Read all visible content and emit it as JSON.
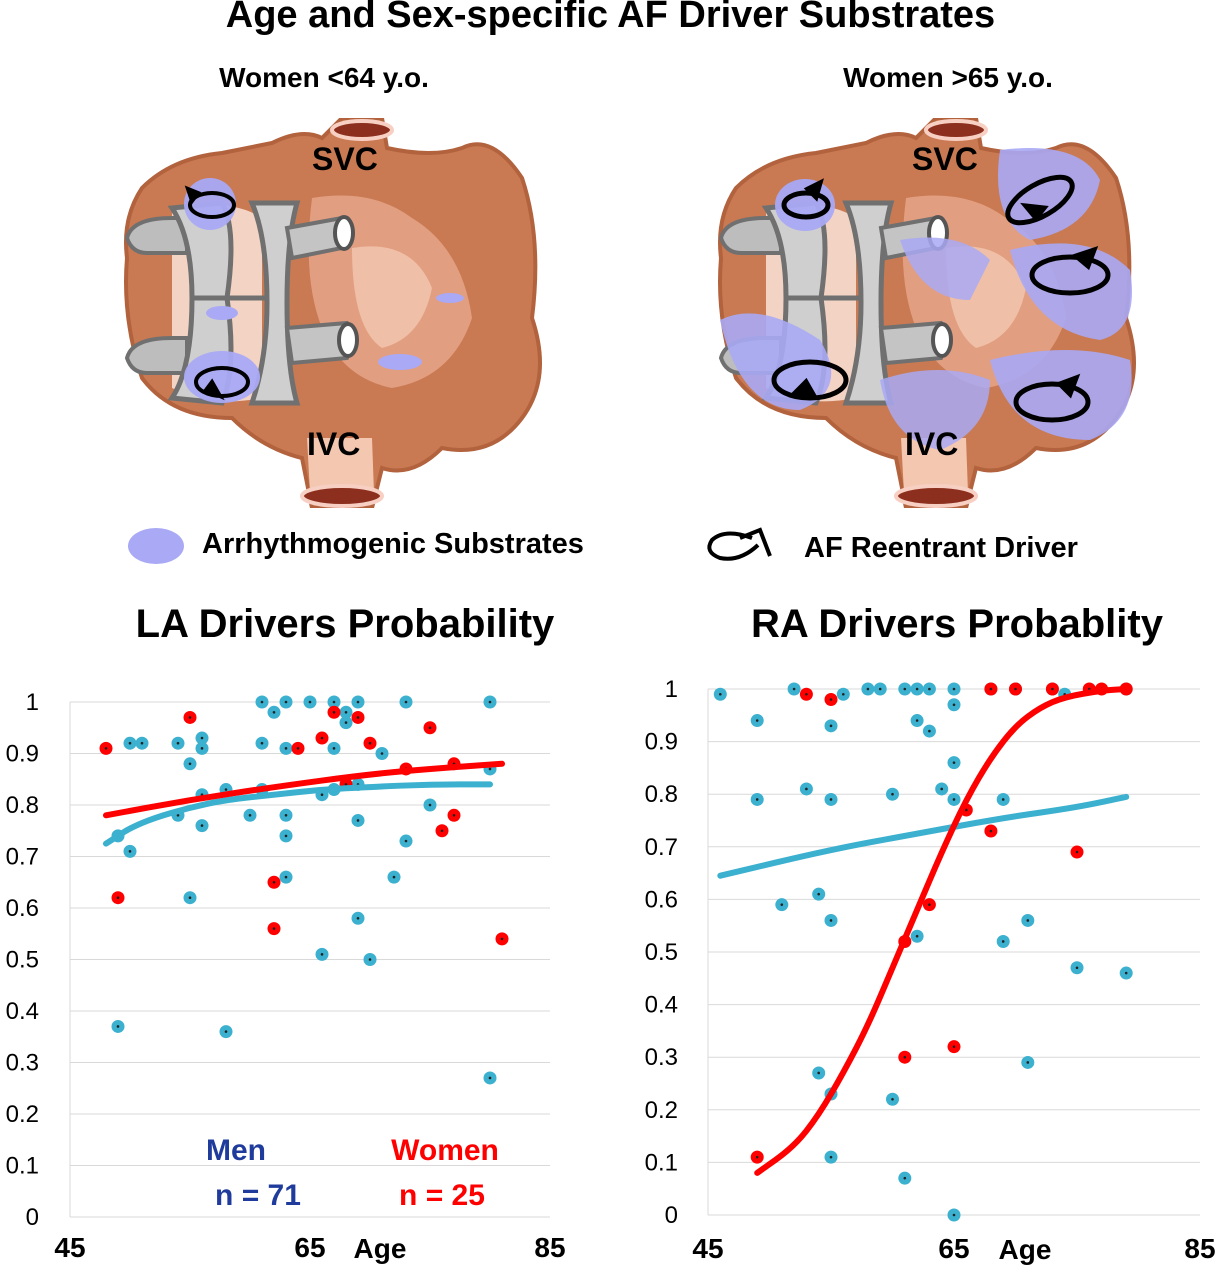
{
  "title": "Age and Sex-specific AF Driver Substrates",
  "panels": [
    {
      "label": "Women <64 y.o.",
      "svc": "SVC",
      "ivc": "IVC"
    },
    {
      "label": "Women >65 y.o.",
      "svc": "SVC",
      "ivc": "IVC"
    }
  ],
  "legend": {
    "substrate": "Arrhythmogenic Substrates",
    "driver": "AF Reentrant Driver"
  },
  "colors": {
    "men": "#3BB0CF",
    "women": "#FF0000",
    "men_label": "#1F3C9C",
    "substrate": "#A9A9F5"
  },
  "chart_data": [
    {
      "type": "scatter",
      "title": "LA Drivers Probability",
      "xlim": [
        45,
        85
      ],
      "ylim": [
        0,
        1
      ],
      "x_ticks": [
        "45",
        "65",
        "85"
      ],
      "xlabel": "Age",
      "y_ticks": [
        "0",
        "0.1",
        "0.2",
        "0.3",
        "0.4",
        "0.5",
        "0.6",
        "0.7",
        "0.8",
        "0.9",
        "1"
      ],
      "annotations": {
        "men": "Men",
        "men_n": "n = 71",
        "women": "Women",
        "women_n": "n = 25"
      },
      "series": [
        {
          "name": "Men",
          "color": "#3BB0CF",
          "points": [
            [
              50,
              0.92
            ],
            [
              51,
              0.92
            ],
            [
              54,
              0.92
            ],
            [
              56,
              0.93
            ],
            [
              56,
              0.91
            ],
            [
              61,
              1.0
            ],
            [
              62,
              0.98
            ],
            [
              63,
              1.0
            ],
            [
              65,
              1.0
            ],
            [
              67,
              1.0
            ],
            [
              69,
              1.0
            ],
            [
              73,
              1.0
            ],
            [
              80,
              1.0
            ],
            [
              49,
              0.74
            ],
            [
              50,
              0.71
            ],
            [
              55,
              0.88
            ],
            [
              56,
              0.82
            ],
            [
              56,
              0.76
            ],
            [
              58,
              0.83
            ],
            [
              60,
              0.78
            ],
            [
              61,
              0.83
            ],
            [
              61,
              0.92
            ],
            [
              63,
              0.91
            ],
            [
              63,
              0.78
            ],
            [
              63,
              0.74
            ],
            [
              63,
              0.66
            ],
            [
              66,
              0.82
            ],
            [
              67,
              0.83
            ],
            [
              67,
              0.91
            ],
            [
              68,
              0.96
            ],
            [
              68,
              0.98
            ],
            [
              69,
              0.84
            ],
            [
              69,
              0.77
            ],
            [
              71,
              0.9
            ],
            [
              72,
              0.66
            ],
            [
              73,
              0.73
            ],
            [
              75,
              0.8
            ],
            [
              80,
              0.87
            ],
            [
              55,
              0.62
            ],
            [
              49,
              0.37
            ],
            [
              58,
              0.36
            ],
            [
              66,
              0.51
            ],
            [
              69,
              0.58
            ],
            [
              70,
              0.5
            ],
            [
              80,
              0.27
            ],
            [
              54,
              0.78
            ]
          ]
        },
        {
          "name": "Women",
          "color": "#FF0000",
          "points": [
            [
              48,
              0.91
            ],
            [
              49,
              0.62
            ],
            [
              55,
              0.97
            ],
            [
              62,
              0.65
            ],
            [
              62,
              0.56
            ],
            [
              64,
              0.91
            ],
            [
              66,
              0.93
            ],
            [
              67,
              0.98
            ],
            [
              68,
              0.84
            ],
            [
              69,
              0.97
            ],
            [
              70,
              0.92
            ],
            [
              73,
              0.87
            ],
            [
              75,
              0.95
            ],
            [
              77,
              0.88
            ],
            [
              76,
              0.75
            ],
            [
              77,
              0.78
            ],
            [
              81,
              0.54
            ]
          ]
        }
      ],
      "trendlines": [
        {
          "name": "Men trend",
          "color": "#3BB0CF",
          "points": [
            [
              48,
              0.725
            ],
            [
              49,
              0.74
            ],
            [
              50,
              0.755
            ],
            [
              52,
              0.775
            ],
            [
              55,
              0.795
            ],
            [
              58,
              0.81
            ],
            [
              62,
              0.82
            ],
            [
              66,
              0.83
            ],
            [
              70,
              0.835
            ],
            [
              75,
              0.84
            ],
            [
              80,
              0.84
            ]
          ]
        },
        {
          "name": "Women trend",
          "color": "#FF0000",
          "points": [
            [
              48,
              0.78
            ],
            [
              55,
              0.81
            ],
            [
              62,
              0.835
            ],
            [
              70,
              0.86
            ],
            [
              76,
              0.872
            ],
            [
              81,
              0.88
            ]
          ]
        }
      ]
    },
    {
      "type": "scatter",
      "title": "RA  Drivers Probablity",
      "xlim": [
        45,
        85
      ],
      "ylim": [
        0,
        1
      ],
      "x_ticks": [
        "45",
        "65",
        "85"
      ],
      "xlabel": "Age",
      "y_ticks": [
        "0",
        "0.1",
        "0.2",
        "0.3",
        "0.4",
        "0.5",
        "0.6",
        "0.7",
        "0.8",
        "0.9",
        "1"
      ],
      "series": [
        {
          "name": "Men",
          "color": "#3BB0CF",
          "points": [
            [
              46,
              0.99
            ],
            [
              52,
              1.0
            ],
            [
              56,
              0.99
            ],
            [
              58,
              1.0
            ],
            [
              59,
              1.0
            ],
            [
              61,
              1.0
            ],
            [
              62,
              1.0
            ],
            [
              63,
              1.0
            ],
            [
              65,
              1.0
            ],
            [
              68,
              1.0
            ],
            [
              70,
              1.0
            ],
            [
              73,
              1.0
            ],
            [
              79,
              1.0
            ],
            [
              49,
              0.94
            ],
            [
              49,
              0.79
            ],
            [
              55,
              0.93
            ],
            [
              53,
              0.81
            ],
            [
              55,
              0.79
            ],
            [
              60,
              0.8
            ],
            [
              62,
              0.94
            ],
            [
              63,
              0.92
            ],
            [
              64,
              0.81
            ],
            [
              65,
              0.86
            ],
            [
              65,
              0.79
            ],
            [
              65,
              0.97
            ],
            [
              69,
              0.79
            ],
            [
              51,
              0.59
            ],
            [
              54,
              0.61
            ],
            [
              55,
              0.56
            ],
            [
              62,
              0.53
            ],
            [
              69,
              0.52
            ],
            [
              71,
              0.56
            ],
            [
              75,
              0.47
            ],
            [
              79,
              0.46
            ],
            [
              74,
              0.99
            ],
            [
              54,
              0.27
            ],
            [
              55,
              0.23
            ],
            [
              55,
              0.11
            ],
            [
              60,
              0.22
            ],
            [
              61,
              0.07
            ],
            [
              65,
              0.0
            ],
            [
              71,
              0.29
            ]
          ]
        },
        {
          "name": "Women",
          "color": "#FF0000",
          "points": [
            [
              49,
              0.11
            ],
            [
              55,
              0.98
            ],
            [
              53,
              0.99
            ],
            [
              61,
              0.52
            ],
            [
              63,
              0.59
            ],
            [
              61,
              0.3
            ],
            [
              65,
              0.32
            ],
            [
              66,
              0.77
            ],
            [
              68,
              0.73
            ],
            [
              68,
              1.0
            ],
            [
              70,
              1.0
            ],
            [
              73,
              1.0
            ],
            [
              75,
              0.69
            ],
            [
              76,
              1.0
            ],
            [
              77,
              1.0
            ],
            [
              79,
              1.0
            ]
          ]
        }
      ],
      "trendlines": [
        {
          "name": "Men trend",
          "color": "#3BB0CF",
          "points": [
            [
              46,
              0.645
            ],
            [
              55,
              0.695
            ],
            [
              62,
              0.725
            ],
            [
              69,
              0.755
            ],
            [
              75,
              0.775
            ],
            [
              79,
              0.795
            ]
          ]
        },
        {
          "name": "Women trend",
          "color": "#FF0000",
          "points": [
            [
              49,
              0.08
            ],
            [
              52,
              0.13
            ],
            [
              54,
              0.19
            ],
            [
              56,
              0.27
            ],
            [
              58,
              0.36
            ],
            [
              60,
              0.47
            ],
            [
              62,
              0.58
            ],
            [
              64,
              0.69
            ],
            [
              66,
              0.79
            ],
            [
              68,
              0.87
            ],
            [
              70,
              0.93
            ],
            [
              72,
              0.965
            ],
            [
              74,
              0.985
            ],
            [
              77,
              0.997
            ],
            [
              79,
              1.0
            ]
          ]
        }
      ]
    }
  ]
}
